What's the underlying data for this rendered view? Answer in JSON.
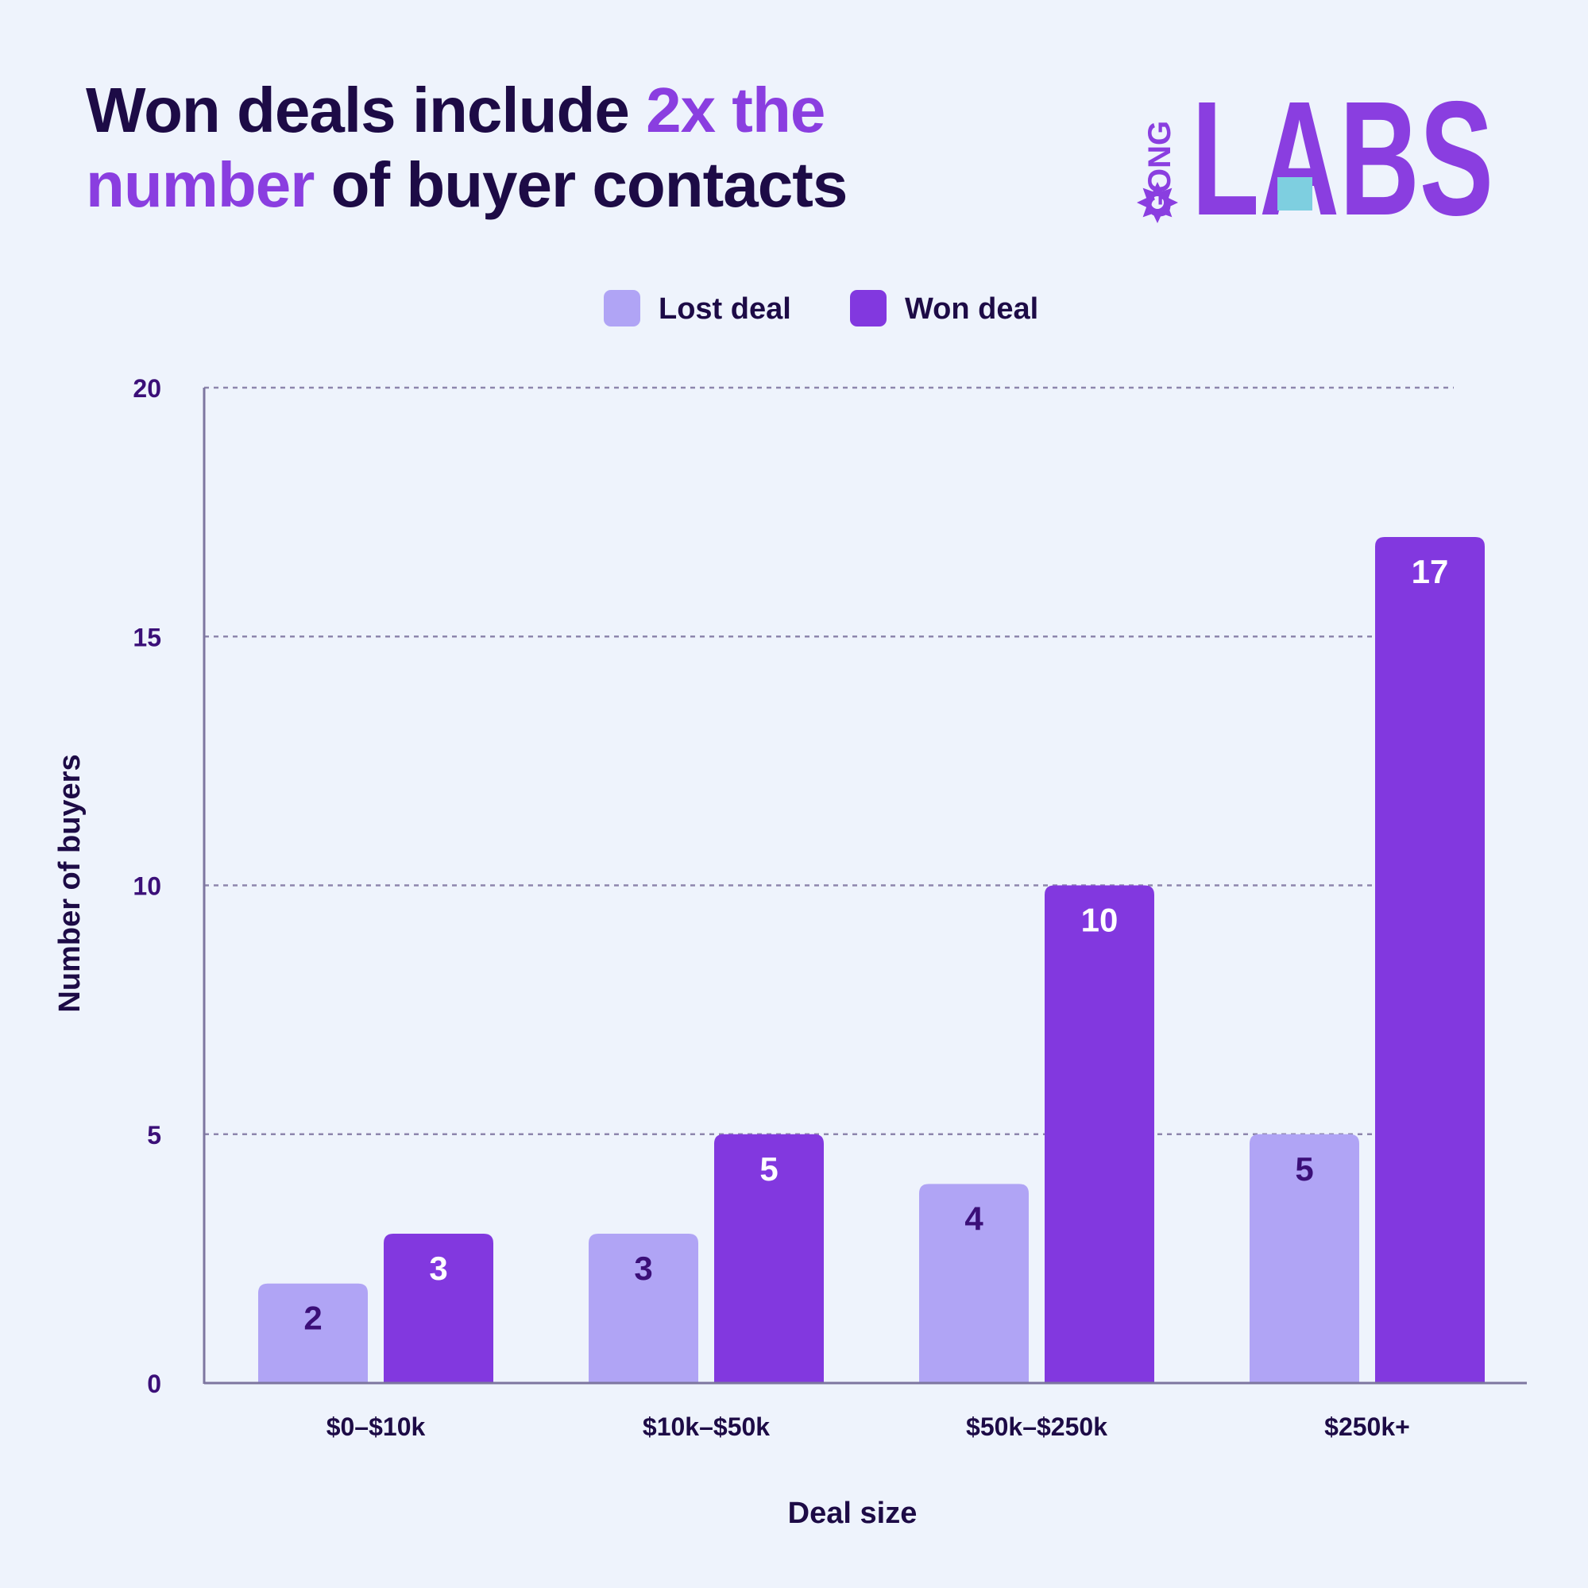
{
  "header": {
    "title_part1": "Won deals include ",
    "title_highlight1": "2x the",
    "title_highlight2": "number",
    "title_part2": " of buyer contacts"
  },
  "logo": {
    "small_text": "GONG",
    "big_text": "LABS",
    "color": "#8a3ee0",
    "accent_color": "#7ecfe0",
    "icon": "starburst-icon"
  },
  "chart_data": {
    "type": "bar",
    "categories": [
      "$0–$10k",
      "$10k–$50k",
      "$50k–$250k",
      "$250k+"
    ],
    "series": [
      {
        "name": "Lost deal",
        "values": [
          2,
          3,
          4,
          5
        ],
        "color": "#b0a4f5",
        "label_color": "#3b0f78"
      },
      {
        "name": "Won deal",
        "values": [
          3,
          5,
          10,
          17
        ],
        "color": "#8238df",
        "label_color": "#ffffff"
      }
    ],
    "xlabel": "Deal size",
    "ylabel": "Number of buyers",
    "ylim": [
      0,
      20
    ],
    "yticks": [
      0,
      5,
      10,
      15,
      20
    ],
    "grid": true,
    "legend_position": "top-center"
  }
}
